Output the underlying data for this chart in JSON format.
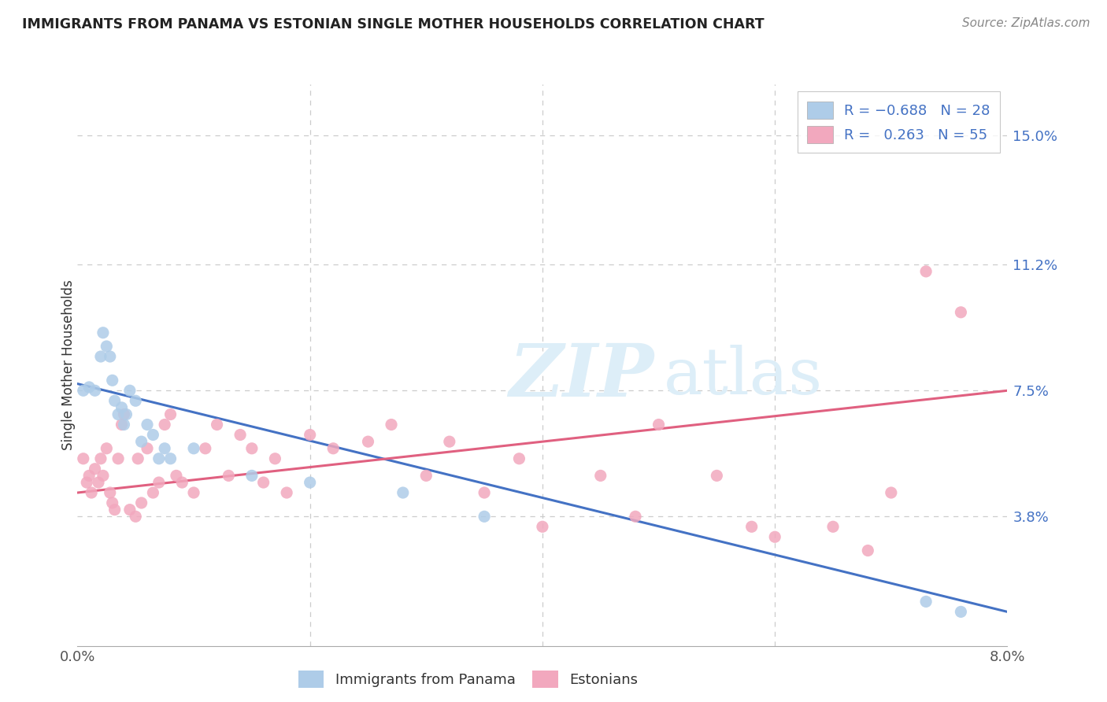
{
  "title": "IMMIGRANTS FROM PANAMA VS ESTONIAN SINGLE MOTHER HOUSEHOLDS CORRELATION CHART",
  "source": "Source: ZipAtlas.com",
  "ylabel": "Single Mother Households",
  "ytick_labels": [
    "3.8%",
    "7.5%",
    "11.2%",
    "15.0%"
  ],
  "ytick_values": [
    3.8,
    7.5,
    11.2,
    15.0
  ],
  "xlim": [
    0.0,
    8.0
  ],
  "ylim": [
    0.0,
    16.5
  ],
  "color_blue": "#aecce8",
  "color_pink": "#f2a8be",
  "color_blue_line": "#4472c4",
  "color_pink_line": "#e06080",
  "color_blue_text": "#4472c4",
  "color_axis_text": "#555555",
  "watermark_color": "#ddeef8",
  "panama_scatter_x": [
    0.05,
    0.1,
    0.15,
    0.2,
    0.22,
    0.25,
    0.28,
    0.3,
    0.32,
    0.35,
    0.38,
    0.4,
    0.42,
    0.45,
    0.5,
    0.55,
    0.6,
    0.65,
    0.7,
    0.75,
    0.8,
    1.0,
    1.5,
    2.0,
    2.8,
    3.5,
    7.3,
    7.6
  ],
  "panama_scatter_y": [
    7.5,
    7.6,
    7.5,
    8.5,
    9.2,
    8.8,
    8.5,
    7.8,
    7.2,
    6.8,
    7.0,
    6.5,
    6.8,
    7.5,
    7.2,
    6.0,
    6.5,
    6.2,
    5.5,
    5.8,
    5.5,
    5.8,
    5.0,
    4.8,
    4.5,
    3.8,
    1.3,
    1.0
  ],
  "estonian_scatter_x": [
    0.05,
    0.08,
    0.1,
    0.12,
    0.15,
    0.18,
    0.2,
    0.22,
    0.25,
    0.28,
    0.3,
    0.32,
    0.35,
    0.38,
    0.4,
    0.45,
    0.5,
    0.52,
    0.55,
    0.6,
    0.65,
    0.7,
    0.75,
    0.8,
    0.85,
    0.9,
    1.0,
    1.1,
    1.2,
    1.3,
    1.4,
    1.5,
    1.6,
    1.7,
    1.8,
    2.0,
    2.2,
    2.5,
    2.7,
    3.0,
    3.2,
    3.5,
    3.8,
    4.0,
    4.5,
    4.8,
    5.0,
    5.5,
    5.8,
    6.0,
    6.5,
    6.8,
    7.0,
    7.3,
    7.6
  ],
  "estonian_scatter_y": [
    5.5,
    4.8,
    5.0,
    4.5,
    5.2,
    4.8,
    5.5,
    5.0,
    5.8,
    4.5,
    4.2,
    4.0,
    5.5,
    6.5,
    6.8,
    4.0,
    3.8,
    5.5,
    4.2,
    5.8,
    4.5,
    4.8,
    6.5,
    6.8,
    5.0,
    4.8,
    4.5,
    5.8,
    6.5,
    5.0,
    6.2,
    5.8,
    4.8,
    5.5,
    4.5,
    6.2,
    5.8,
    6.0,
    6.5,
    5.0,
    6.0,
    4.5,
    5.5,
    3.5,
    5.0,
    3.8,
    6.5,
    5.0,
    3.5,
    3.2,
    3.5,
    2.8,
    4.5,
    11.0,
    9.8
  ],
  "blue_line_x0": 0.0,
  "blue_line_y0": 7.7,
  "blue_line_x1": 8.0,
  "blue_line_y1": 1.0,
  "pink_line_x0": 0.0,
  "pink_line_y0": 4.5,
  "pink_line_x1": 8.0,
  "pink_line_y1": 7.5
}
